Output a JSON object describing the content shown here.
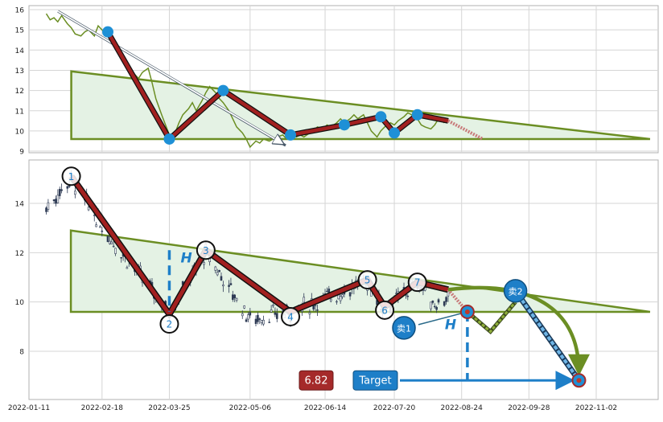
{
  "colors": {
    "price_line": "#6b8e23",
    "wave": "#b22222",
    "triangle_fill": "#e4f2e4",
    "triangle_stroke": "#6b8e23",
    "node": "#1e90d6",
    "target_box": "#1e7fc8",
    "price_box": "#a52a2a",
    "grid": "#d5d5d5",
    "candle": "#2e3b55"
  },
  "chart_data": [
    {
      "type": "line",
      "title": "",
      "xlabel": "",
      "ylabel": "",
      "ylim": [
        8.8,
        16.3
      ],
      "yticks": [
        9,
        10,
        11,
        12,
        13,
        14,
        15,
        16
      ],
      "grid": true,
      "series": [
        {
          "values": [
            [
              "2022-01-20",
              15.8
            ],
            [
              "2022-01-22",
              15.5
            ],
            [
              "2022-01-24",
              15.6
            ],
            [
              "2022-01-26",
              15.4
            ],
            [
              "2022-01-28",
              15.7
            ],
            [
              "2022-01-31",
              15.3
            ],
            [
              "2022-02-02",
              15.1
            ],
            [
              "2022-02-04",
              14.8
            ],
            [
              "2022-02-07",
              14.7
            ],
            [
              "2022-02-09",
              14.9
            ],
            [
              "2022-02-11",
              15.0
            ],
            [
              "2022-02-14",
              14.7
            ],
            [
              "2022-02-16",
              15.2
            ],
            [
              "2022-02-18",
              15.0
            ],
            [
              "2022-02-21",
              14.7
            ],
            [
              "2022-02-23",
              14.5
            ],
            [
              "2022-02-25",
              14.3
            ],
            [
              "2022-02-28",
              13.8
            ],
            [
              "2022-03-02",
              13.5
            ],
            [
              "2022-03-04",
              13.1
            ],
            [
              "2022-03-07",
              12.8
            ],
            [
              "2022-03-09",
              12.6
            ],
            [
              "2022-03-11",
              12.9
            ],
            [
              "2022-03-14",
              13.1
            ],
            [
              "2022-03-16",
              12.4
            ],
            [
              "2022-03-18",
              11.6
            ],
            [
              "2022-03-21",
              10.8
            ],
            [
              "2022-03-23",
              10.3
            ],
            [
              "2022-03-25",
              9.8
            ],
            [
              "2022-03-28",
              9.9
            ],
            [
              "2022-03-30",
              10.4
            ],
            [
              "2022-04-01",
              10.8
            ],
            [
              "2022-04-04",
              11.1
            ],
            [
              "2022-04-06",
              11.4
            ],
            [
              "2022-04-08",
              11.0
            ],
            [
              "2022-04-11",
              11.5
            ],
            [
              "2022-04-13",
              11.9
            ],
            [
              "2022-04-15",
              12.2
            ],
            [
              "2022-04-18",
              11.9
            ],
            [
              "2022-04-20",
              11.6
            ],
            [
              "2022-04-22",
              11.4
            ],
            [
              "2022-04-25",
              11.0
            ],
            [
              "2022-04-27",
              10.6
            ],
            [
              "2022-04-29",
              10.2
            ],
            [
              "2022-05-02",
              9.9
            ],
            [
              "2022-05-04",
              9.6
            ],
            [
              "2022-05-06",
              9.2
            ],
            [
              "2022-05-09",
              9.5
            ],
            [
              "2022-05-11",
              9.4
            ],
            [
              "2022-05-13",
              9.6
            ],
            [
              "2022-05-16",
              9.5
            ],
            [
              "2022-05-18",
              9.6
            ],
            [
              "2022-05-20",
              9.7
            ],
            [
              "2022-05-23",
              9.8
            ],
            [
              "2022-05-25",
              9.6
            ],
            [
              "2022-05-27",
              9.9
            ],
            [
              "2022-05-30",
              9.7
            ],
            [
              "2022-06-01",
              9.8
            ],
            [
              "2022-06-03",
              9.7
            ],
            [
              "2022-06-06",
              9.9
            ],
            [
              "2022-06-08",
              10.0
            ],
            [
              "2022-06-10",
              10.2
            ],
            [
              "2022-06-13",
              10.1
            ],
            [
              "2022-06-15",
              10.3
            ],
            [
              "2022-06-17",
              10.2
            ],
            [
              "2022-06-20",
              10.4
            ],
            [
              "2022-06-22",
              10.6
            ],
            [
              "2022-06-24",
              10.4
            ],
            [
              "2022-06-27",
              10.6
            ],
            [
              "2022-06-29",
              10.8
            ],
            [
              "2022-07-01",
              10.6
            ],
            [
              "2022-07-04",
              10.8
            ],
            [
              "2022-07-06",
              10.4
            ],
            [
              "2022-07-08",
              10.0
            ],
            [
              "2022-07-11",
              9.7
            ],
            [
              "2022-07-13",
              10.0
            ],
            [
              "2022-07-15",
              10.2
            ],
            [
              "2022-07-18",
              10.4
            ],
            [
              "2022-07-20",
              10.3
            ],
            [
              "2022-07-22",
              10.5
            ],
            [
              "2022-07-25",
              10.7
            ],
            [
              "2022-07-27",
              10.9
            ],
            [
              "2022-07-29",
              10.8
            ],
            [
              "2022-08-01",
              10.6
            ],
            [
              "2022-08-03",
              10.3
            ],
            [
              "2022-08-05",
              10.2
            ],
            [
              "2022-08-08",
              10.1
            ],
            [
              "2022-08-10",
              10.3
            ],
            [
              "2022-08-12",
              10.6
            ],
            [
              "2022-08-15",
              10.4
            ]
          ]
        }
      ]
    },
    {
      "type": "candlestick",
      "title": "",
      "xlabel": "",
      "ylabel": "",
      "ylim": [
        6.2,
        15.9
      ],
      "yticks": [
        8,
        10,
        12,
        14
      ],
      "x_ticks": [
        "2022-01-11",
        "2022-02-18",
        "2022-03-25",
        "2022-05-06",
        "2022-06-14",
        "2022-07-20",
        "2022-08-24",
        "2022-09-28",
        "2022-11-02"
      ],
      "grid": true,
      "waves": [
        {
          "label": "1",
          "date": "2022-02-02",
          "value": 15.1
        },
        {
          "label": "2",
          "date": "2022-03-25",
          "value": 9.5
        },
        {
          "label": "3",
          "date": "2022-04-13",
          "value": 12.1
        },
        {
          "label": "4",
          "date": "2022-05-27",
          "value": 9.6
        },
        {
          "label": "5",
          "date": "2022-07-06",
          "value": 10.9
        },
        {
          "label": "6",
          "date": "2022-07-15",
          "value": 9.8
        },
        {
          "label": "7",
          "date": "2022-08-01",
          "value": 10.8
        }
      ],
      "triangle": {
        "top": [
          [
            "2022-02-02",
            12.9
          ],
          [
            "2022-11-30",
            9.6
          ]
        ],
        "bottom": [
          [
            "2022-02-02",
            9.6
          ],
          [
            "2022-11-30",
            9.6
          ]
        ]
      },
      "annotations": {
        "height_label": "H",
        "sell1_label": "卖1",
        "sell2_label": "卖2",
        "target_label": "Target",
        "target_value": "6.82",
        "target_date": "2022-10-24"
      }
    }
  ]
}
